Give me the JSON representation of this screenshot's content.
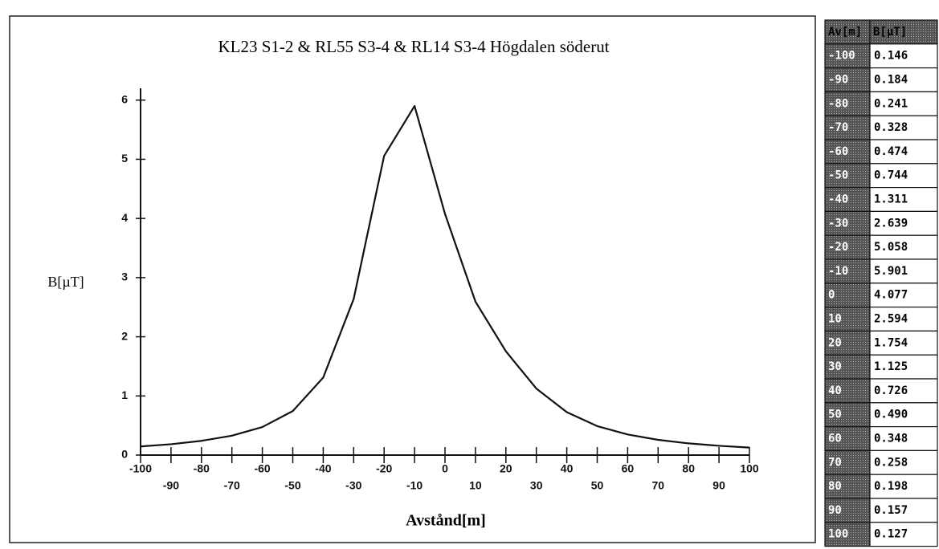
{
  "chart_data": {
    "type": "line",
    "title": "KL23 S1-2 & RL55 S3-4 & RL14 S3-4 Högdalen söderut",
    "x_label": "Avstånd[m]",
    "y_label": "B[µT]",
    "x": [
      -100,
      -90,
      -80,
      -70,
      -60,
      -50,
      -40,
      -30,
      -20,
      -10,
      0,
      10,
      20,
      30,
      40,
      50,
      60,
      70,
      80,
      90,
      100
    ],
    "series": [
      {
        "color": "#111111",
        "values": [
          0.146,
          0.184,
          0.241,
          0.328,
          0.474,
          0.744,
          1.311,
          2.639,
          5.058,
          5.901,
          4.077,
          2.594,
          1.754,
          1.125,
          0.726,
          0.49,
          0.348,
          0.258,
          0.198,
          0.157,
          0.127
        ]
      }
    ],
    "xlim": [
      -100,
      100
    ],
    "xticks": [
      -100,
      -90,
      -80,
      -70,
      -60,
      -50,
      -40,
      -30,
      -20,
      -10,
      0,
      10,
      20,
      30,
      40,
      50,
      60,
      70,
      80,
      90,
      100
    ],
    "ylim": [
      0,
      6.2
    ],
    "yticks": [
      0,
      1,
      2,
      3,
      4,
      5,
      6
    ]
  },
  "table": {
    "header": [
      "Av[m]",
      "B[µT]"
    ],
    "rows": [
      [
        "-100",
        "0.146"
      ],
      [
        "-90",
        "0.184"
      ],
      [
        "-80",
        "0.241"
      ],
      [
        "-70",
        "0.328"
      ],
      [
        "-60",
        "0.474"
      ],
      [
        "-50",
        "0.744"
      ],
      [
        "-40",
        "1.311"
      ],
      [
        "-30",
        "2.639"
      ],
      [
        "-20",
        "5.058"
      ],
      [
        "-10",
        "5.901"
      ],
      [
        "0",
        "4.077"
      ],
      [
        "10",
        "2.594"
      ],
      [
        "20",
        "1.754"
      ],
      [
        "30",
        "1.125"
      ],
      [
        "40",
        "0.726"
      ],
      [
        "50",
        "0.490"
      ],
      [
        "60",
        "0.348"
      ],
      [
        "70",
        "0.258"
      ],
      [
        "80",
        "0.198"
      ],
      [
        "90",
        "0.157"
      ],
      [
        "100",
        "0.127"
      ]
    ]
  }
}
